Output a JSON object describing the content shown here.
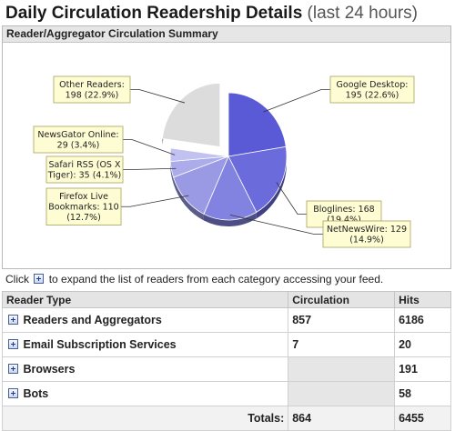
{
  "page": {
    "title": "Daily Circulation Readership Details",
    "title_suffix": "(last 24 hours)"
  },
  "summary_panel": {
    "header": "Reader/Aggregator Circulation Summary"
  },
  "chart_data": {
    "type": "pie",
    "exploded": "Other Readers",
    "slices": [
      {
        "label": "Google Desktop",
        "value": 195,
        "percent": "22.6%",
        "color": "#5a5ad6",
        "label_lines": [
          "Google Desktop:",
          "195 (22.6%)"
        ]
      },
      {
        "label": "Bloglines",
        "value": 168,
        "percent": "19.4%",
        "color": "#6b6bdc",
        "label_lines": [
          "Bloglines: 168",
          "(19.4%)"
        ]
      },
      {
        "label": "NetNewsWire",
        "value": 129,
        "percent": "14.9%",
        "color": "#8282e0",
        "label_lines": [
          "NetNewsWire: 129",
          "(14.9%)"
        ]
      },
      {
        "label": "Firefox Live Bookmarks",
        "value": 110,
        "percent": "12.7%",
        "color": "#9a9ae4",
        "label_lines": [
          "Firefox Live",
          "Bookmarks: 110",
          "(12.7%)"
        ]
      },
      {
        "label": "Safari RSS (OS X Tiger)",
        "value": 35,
        "percent": "4.1%",
        "color": "#acacea",
        "label_lines": [
          "Safari RSS (OS X",
          "Tiger): 35 (4.1%)"
        ]
      },
      {
        "label": "NewsGator Online",
        "value": 29,
        "percent": "3.4%",
        "color": "#c2c2f0",
        "label_lines": [
          "NewsGator Online:",
          "29 (3.4%)"
        ]
      },
      {
        "label": "Other Readers",
        "value": 198,
        "percent": "22.9%",
        "color": "#dcdcdc",
        "label_lines": [
          "Other Readers:",
          "198 (22.9%)"
        ]
      }
    ]
  },
  "hint": {
    "before": "Click",
    "after": "to expand the list of readers from each category accessing your feed."
  },
  "table": {
    "headers": {
      "reader_type": "Reader Type",
      "circulation": "Circulation",
      "hits": "Hits"
    },
    "rows": [
      {
        "name": "Readers and Aggregators",
        "circulation": "857",
        "hits": "6186"
      },
      {
        "name": "Email Subscription Services",
        "circulation": "7",
        "hits": "20"
      },
      {
        "name": "Browsers",
        "circulation": "",
        "hits": "191"
      },
      {
        "name": "Bots",
        "circulation": "",
        "hits": "58"
      }
    ],
    "totals": {
      "label": "Totals:",
      "circulation": "864",
      "hits": "6455"
    }
  },
  "colors": {
    "label_box_fill": "#fefcd2",
    "label_box_border": "#a8a060",
    "header_bg": "#e4e4e4"
  }
}
